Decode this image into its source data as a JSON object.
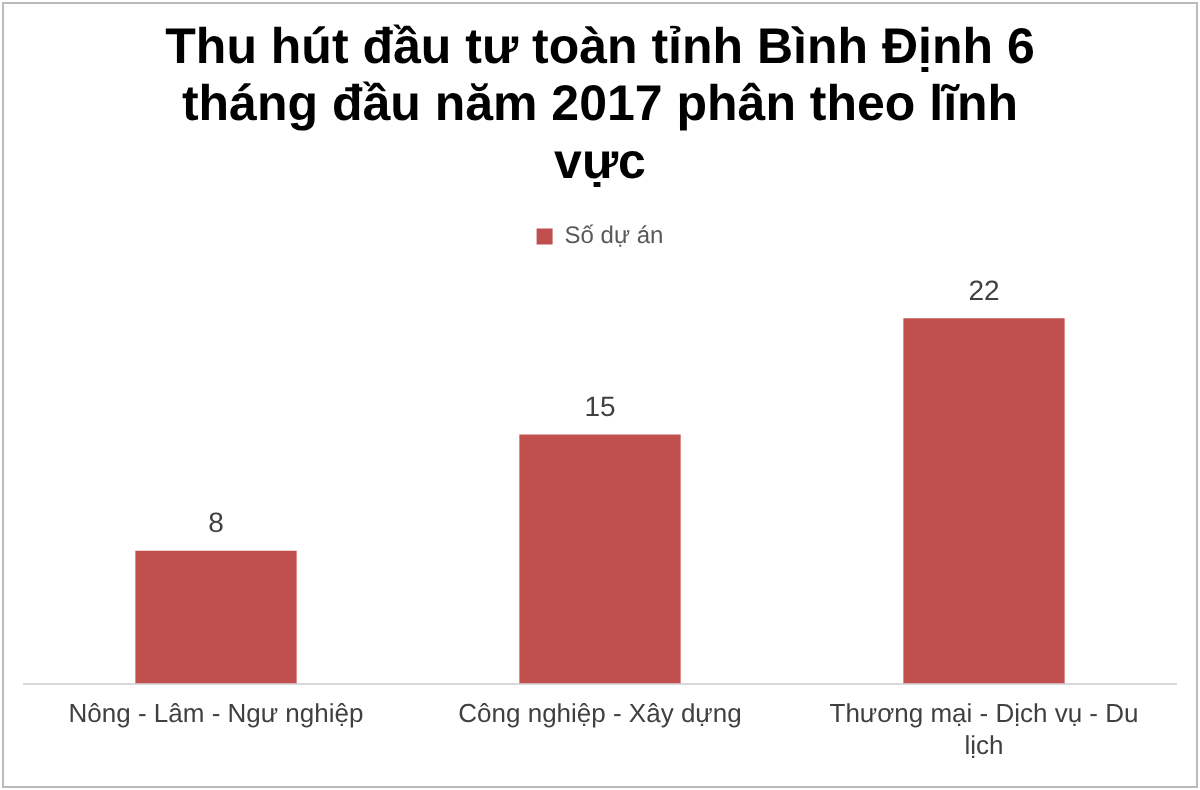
{
  "chart_data": {
    "type": "bar",
    "title": "Thu hút đầu tư toàn tỉnh Bình Định 6 tháng đầu năm 2017 phân theo lĩnh vực",
    "categories": [
      "Nông - Lâm - Ngư nghiệp",
      "Công nghiệp - Xây dựng",
      "Thương mại - Dịch vụ - Du lịch"
    ],
    "series": [
      {
        "name": "Số dự án",
        "color": "#c0504d",
        "values": [
          8,
          15,
          22
        ]
      }
    ],
    "data_labels": true,
    "legend": "top",
    "grid": false
  }
}
